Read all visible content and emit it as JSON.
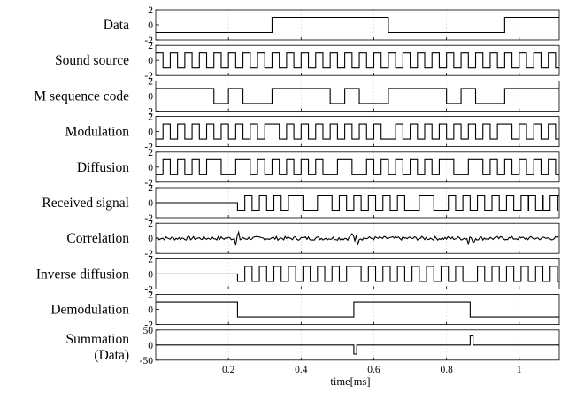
{
  "chart_data": {
    "type": "line",
    "xlabel": "time[ms]",
    "xlim": [
      0,
      1.11
    ],
    "x_ticks": [
      0.2,
      0.4,
      0.6,
      0.8,
      1
    ],
    "x_tick_labels": [
      "0.2",
      "0.4",
      "0.6",
      "0.8",
      "1"
    ],
    "grid": true,
    "panels": [
      {
        "label": "Data",
        "ylim": [
          -2,
          2
        ],
        "y_ticks": [
          2,
          0,
          -2
        ],
        "y_tick_labels": [
          "2",
          "0",
          "-2"
        ],
        "kind": "steps",
        "t": [
          0,
          0.32,
          0.64,
          0.96
        ],
        "v": [
          -1,
          1,
          -1,
          1
        ]
      },
      {
        "label": "Sound source",
        "ylim": [
          -2,
          2
        ],
        "y_ticks": [
          2,
          0,
          -2
        ],
        "y_tick_labels": [
          "2",
          "0",
          "-2"
        ],
        "kind": "square",
        "period": 0.04,
        "first": 1
      },
      {
        "label": "M sequence code",
        "ylim": [
          -2,
          2
        ],
        "y_ticks": [
          2,
          0,
          -2
        ],
        "y_tick_labels": [
          "2",
          "0",
          "-2"
        ],
        "kind": "steps",
        "t": [
          0,
          0.16,
          0.2,
          0.24,
          0.32,
          0.48,
          0.52,
          0.56,
          0.64,
          0.8,
          0.84,
          0.88,
          0.96
        ],
        "v": [
          1,
          -1,
          1,
          -1,
          1,
          -1,
          1,
          -1,
          1,
          -1,
          1,
          -1,
          1
        ]
      },
      {
        "label": "Modulation",
        "ylim": [
          -2,
          2
        ],
        "y_ticks": [
          2,
          0,
          -2
        ],
        "y_tick_labels": [
          "2",
          "0",
          "-2"
        ],
        "kind": "mult",
        "sources": [
          "Data",
          "Sound source"
        ]
      },
      {
        "label": "Diffusion",
        "ylim": [
          -2,
          2
        ],
        "y_ticks": [
          2,
          0,
          -2
        ],
        "y_tick_labels": [
          "2",
          "0",
          "-2"
        ],
        "kind": "mult",
        "sources": [
          "Modulation",
          "M sequence code"
        ]
      },
      {
        "label": "Received signal",
        "ylim": [
          -2,
          2
        ],
        "y_ticks": [
          2,
          0,
          -2
        ],
        "y_tick_labels": [
          "2",
          "0",
          "-2"
        ],
        "kind": "delayed",
        "source": "Diffusion",
        "delay": 0.225
      },
      {
        "label": "Correlation",
        "ylim": [
          -2,
          2
        ],
        "y_ticks": [
          2,
          0,
          -2
        ],
        "y_tick_labels": [
          "2",
          "0",
          "-2"
        ],
        "kind": "noise",
        "amplitude": 0.25,
        "spikes": [
          0.23,
          0.545,
          0.865
        ],
        "spike_amplitude": 0.8
      },
      {
        "label": "Inverse diffusion",
        "ylim": [
          -2,
          2
        ],
        "y_ticks": [
          2,
          0,
          -2
        ],
        "y_tick_labels": [
          "2",
          "0",
          "-2"
        ],
        "kind": "delayed",
        "source": "Modulation",
        "delay": 0.225
      },
      {
        "label": "Demodulation",
        "ylim": [
          -2,
          2
        ],
        "y_ticks": [
          2,
          0,
          -2
        ],
        "y_tick_labels": [
          "2",
          "0",
          "-2"
        ],
        "kind": "steps",
        "t": [
          0,
          0.225,
          0.545,
          0.865
        ],
        "v": [
          1,
          -1,
          1,
          -1
        ]
      },
      {
        "label": "Summation",
        "label2": "(Data)",
        "ylim": [
          -50,
          50
        ],
        "y_ticks": [
          50,
          0,
          -50
        ],
        "y_tick_labels": [
          "50",
          "0",
          "-50"
        ],
        "kind": "impulses",
        "baseline": 0,
        "impulses": [
          {
            "t": 0.545,
            "v": -30
          },
          {
            "t": 0.865,
            "v": 30
          }
        ]
      }
    ]
  }
}
